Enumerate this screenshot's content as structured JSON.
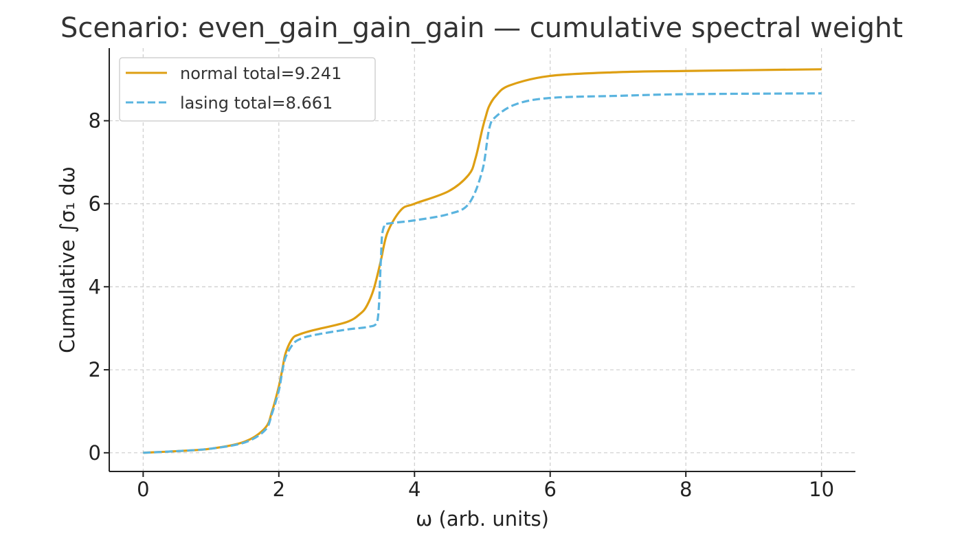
{
  "chart_data": {
    "type": "line",
    "title": "Scenario: even_gain_gain_gain — cumulative spectral weight",
    "xlabel": "ω (arb. units)",
    "ylabel": "Cumulative ∫σ₁ dω",
    "xlim": [
      -0.5,
      10.5
    ],
    "ylim": [
      -0.45,
      9.75
    ],
    "xticks": [
      0,
      2,
      4,
      6,
      8,
      10
    ],
    "yticks": [
      0,
      2,
      4,
      6,
      8
    ],
    "grid": true,
    "legend_position": "top-left",
    "series": [
      {
        "name": "normal total=9.241",
        "color": "#DE9F13",
        "style": "solid",
        "x": [
          0,
          0.5,
          1.0,
          1.5,
          1.8,
          1.9,
          2.0,
          2.05,
          2.1,
          2.2,
          2.3,
          2.5,
          3.0,
          3.2,
          3.3,
          3.4,
          3.5,
          3.6,
          3.8,
          4.0,
          4.5,
          4.8,
          4.9,
          5.0,
          5.05,
          5.1,
          5.2,
          5.4,
          6.0,
          7.0,
          8.0,
          10.0
        ],
        "y": [
          0.0,
          0.04,
          0.1,
          0.27,
          0.6,
          1.0,
          1.6,
          2.0,
          2.4,
          2.75,
          2.85,
          2.95,
          3.15,
          3.35,
          3.55,
          3.95,
          4.6,
          5.3,
          5.85,
          6.0,
          6.3,
          6.7,
          7.1,
          7.8,
          8.1,
          8.35,
          8.6,
          8.85,
          9.08,
          9.17,
          9.2,
          9.24
        ]
      },
      {
        "name": "lasing total=8.661",
        "color": "#5AB4DF",
        "style": "dashed",
        "x": [
          0,
          0.5,
          1.0,
          1.5,
          1.8,
          1.9,
          2.0,
          2.05,
          2.1,
          2.2,
          2.3,
          2.5,
          3.0,
          3.3,
          3.45,
          3.5,
          3.52,
          3.55,
          3.6,
          4.0,
          4.5,
          4.8,
          5.0,
          5.1,
          5.2,
          5.5,
          6.0,
          7.0,
          8.0,
          10.0
        ],
        "y": [
          0.0,
          0.04,
          0.1,
          0.25,
          0.55,
          0.95,
          1.5,
          1.95,
          2.3,
          2.6,
          2.73,
          2.83,
          2.97,
          3.03,
          3.15,
          4.5,
          5.2,
          5.45,
          5.52,
          5.6,
          5.75,
          6.0,
          6.8,
          7.8,
          8.1,
          8.4,
          8.55,
          8.6,
          8.64,
          8.66
        ]
      }
    ]
  },
  "colors": {
    "grid": "#cccccc",
    "axis": "#222222",
    "legend_border": "#d0d0d0"
  }
}
